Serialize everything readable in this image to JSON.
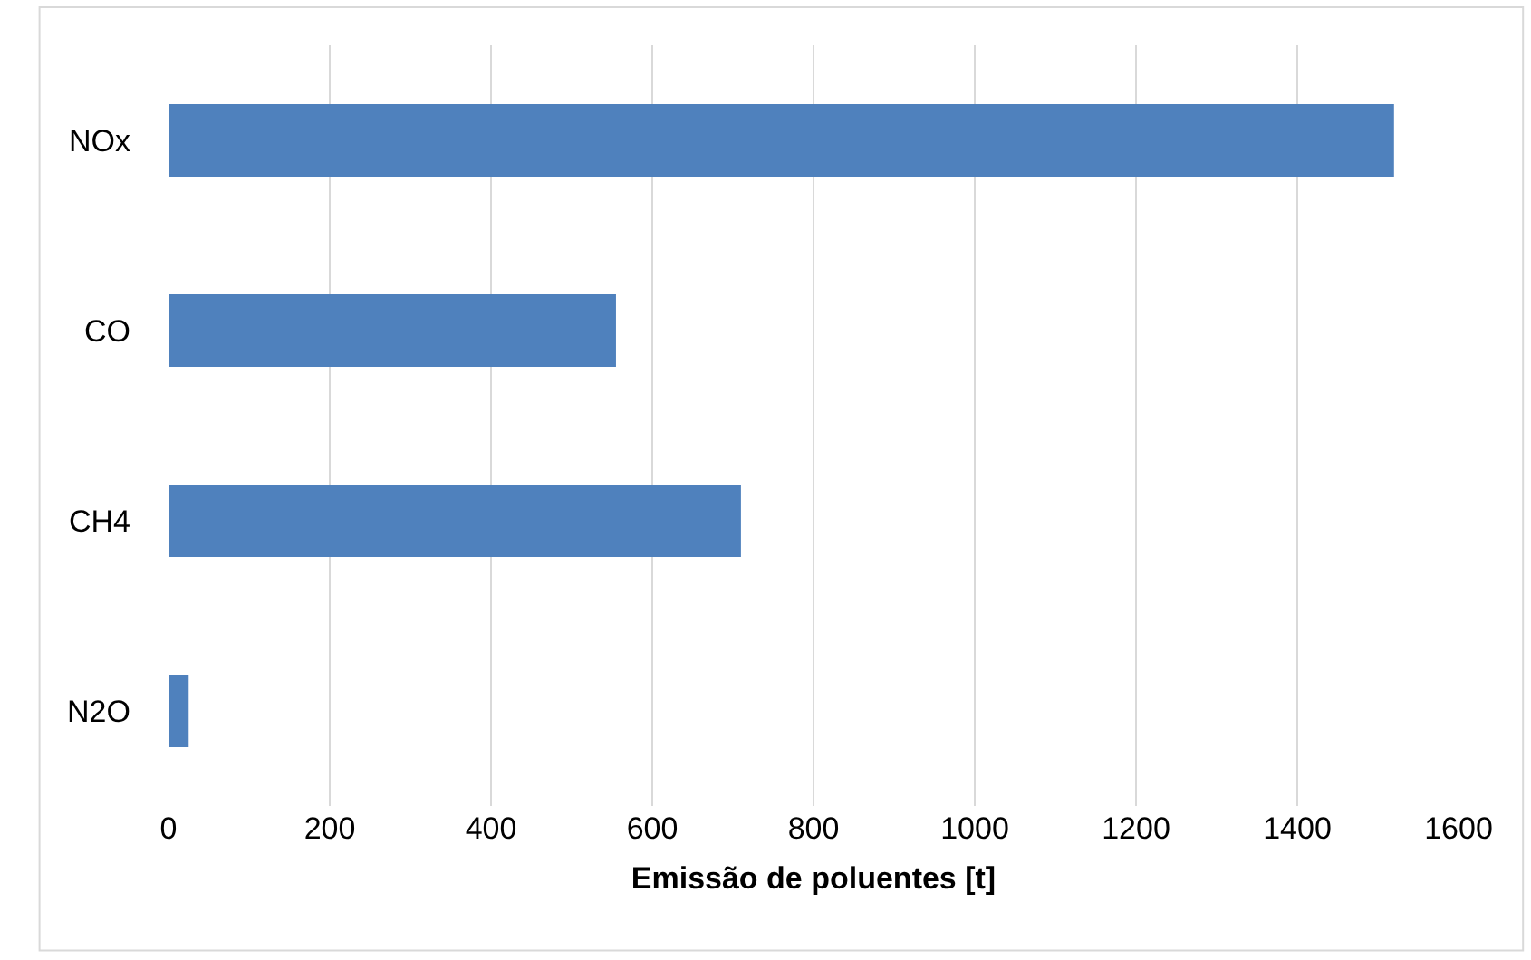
{
  "chart_data": {
    "type": "bar",
    "orientation": "horizontal",
    "xlabel": "Emissão de poluentes [t]",
    "categories": [
      "NOx",
      "CO",
      "CH4",
      "N2O"
    ],
    "values": [
      1520,
      555,
      710,
      25
    ],
    "color": "#4f81bd",
    "xlim": [
      0,
      1600
    ],
    "xticks": [
      0,
      200,
      400,
      600,
      800,
      1000,
      1200,
      1400,
      1600
    ],
    "grid": "x"
  }
}
